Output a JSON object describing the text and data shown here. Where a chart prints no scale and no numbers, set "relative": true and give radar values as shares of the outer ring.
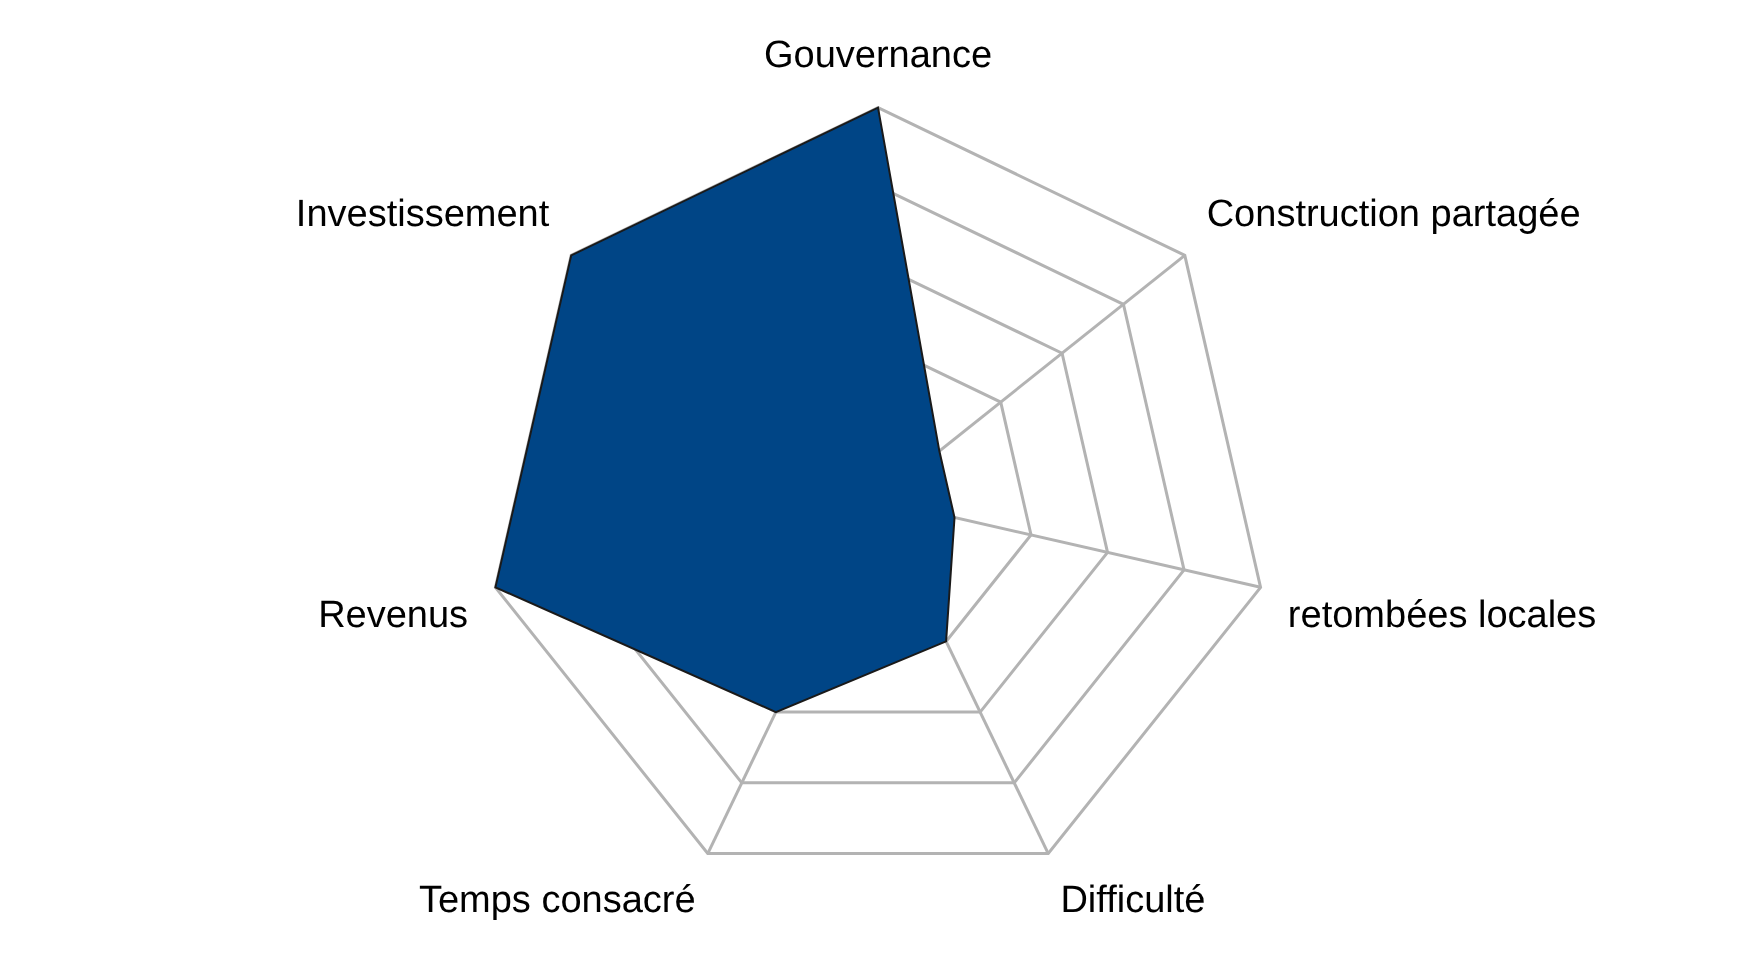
{
  "chart_data": {
    "type": "radar",
    "relative": true,
    "categories": [
      "Gouvernance",
      "Construction partagée",
      "retombées locales",
      "Difficulté",
      "Temps consacré",
      "Revenus",
      "Investissement"
    ],
    "series": [
      {
        "color": "#004586",
        "values": [
          1,
          0.2,
          0.2,
          0.4,
          0.6,
          1,
          1
        ]
      }
    ],
    "grid": true,
    "legend": false
  }
}
